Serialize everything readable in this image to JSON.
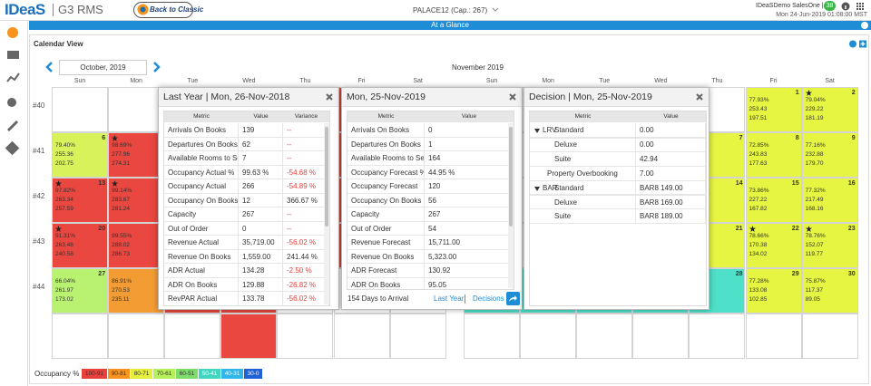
{
  "header": {
    "logo": "IDeaS",
    "product": "G3 RMS",
    "classic_button": "Back to Classic",
    "property": "PALACE12 (Cap.: 267)",
    "user": "IDeaSDemo SalesOne | IM",
    "badge": "38",
    "datetime": "Mon 24-Jun-2019 01:08:00 MST"
  },
  "page_title": "At a Glance",
  "view_title": "Calendar View",
  "calendar": {
    "months": [
      {
        "title": "October, 2019",
        "weekdays": [
          "Sun",
          "Mon",
          "Tue",
          "Wed",
          "Thu",
          "Fri",
          "Sat"
        ],
        "weeks": [
          {
            "label": "#40",
            "days": [
              null,
              null,
              null,
              {
                "color": "#e9473f"
              },
              {
                "color": "#e9473f"
              },
              {
                "color": "#e9473f"
              },
              {
                "color": "#e9473f"
              }
            ]
          },
          {
            "label": "#41",
            "days": [
              {
                "day": "6",
                "lines": [
                  "79.40%",
                  "255.36",
                  "202.75"
                ],
                "color": "#d8f25c"
              },
              {
                "star": true,
                "lines": [
                  "98.69%",
                  "277.96",
                  "274.31"
                ],
                "color": "#e9473f"
              },
              {
                "color": "#e9473f"
              },
              {
                "color": "#e9473f"
              },
              {
                "color": "#e9473f"
              },
              {
                "color": "#e9473f"
              },
              {
                "color": "#e9473f"
              }
            ]
          },
          {
            "label": "#42",
            "days": [
              {
                "day": "13",
                "star": true,
                "lines": [
                  "97.82%",
                  "263.34",
                  "257.59"
                ],
                "color": "#e9473f"
              },
              {
                "star": true,
                "lines": [
                  "99.14%",
                  "283.67",
                  "281.24"
                ],
                "color": "#e9473f"
              },
              {
                "color": "#e9473f"
              },
              {
                "color": "#e9473f"
              },
              {
                "color": "#e9473f"
              },
              {
                "color": "#e9473f"
              },
              {
                "color": "#e9473f"
              }
            ]
          },
          {
            "label": "#43",
            "days": [
              {
                "day": "20",
                "star": true,
                "lines": [
                  "91.31%",
                  "263.48",
                  "240.58"
                ],
                "color": "#e9473f"
              },
              {
                "lines": [
                  "99.55%",
                  "288.02",
                  "286.73"
                ],
                "color": "#e9473f"
              },
              {
                "color": "#e9473f"
              },
              {
                "color": "#e9473f"
              },
              {
                "color": "#e9473f"
              },
              {
                "color": "#e9473f"
              },
              {
                "color": "#e9473f"
              }
            ]
          },
          {
            "label": "#44",
            "days": [
              {
                "day": "27",
                "lines": [
                  "66.04%",
                  "261.97",
                  "173.02"
                ],
                "color": "#b9f170"
              },
              {
                "lines": [
                  "86.91%",
                  "270.53",
                  "235.11"
                ],
                "color": "#f39c34"
              },
              {
                "color": "#e9473f"
              },
              {
                "color": "#e9473f"
              },
              null,
              null,
              null
            ]
          },
          {
            "days": [
              null,
              null,
              null,
              {
                "color": "#e9473f"
              },
              null,
              null,
              null
            ]
          }
        ]
      },
      {
        "title": "November 2019",
        "weekdays": [
          "Sun",
          "Mon",
          "Tue",
          "Wed",
          "Thu",
          "Fri",
          "Sat"
        ],
        "weeks": [
          {
            "days": [
              null,
              null,
              null,
              null,
              null,
              {
                "day": "1",
                "lines": [
                  "77.93%",
                  "253.43",
                  "197.51"
                ],
                "color": "#e5f542"
              },
              {
                "day": "2",
                "star": true,
                "lines": [
                  "79.04%",
                  "229.22",
                  "181.19"
                ],
                "color": "#e5f542"
              }
            ]
          },
          {
            "days": [
              null,
              null,
              null,
              null,
              {
                "day": "7",
                "color": "#e5f542"
              },
              {
                "day": "8",
                "lines": [
                  "72.85%",
                  "243.83",
                  "177.63"
                ],
                "color": "#e5f542"
              },
              {
                "day": "9",
                "lines": [
                  "77.16%",
                  "232.88",
                  "179.70"
                ],
                "color": "#e5f542"
              }
            ]
          },
          {
            "days": [
              null,
              null,
              null,
              null,
              {
                "day": "14",
                "color": "#e5f542"
              },
              {
                "day": "15",
                "lines": [
                  "73.86%",
                  "227.22",
                  "167.82"
                ],
                "color": "#e5f542"
              },
              {
                "day": "16",
                "lines": [
                  "77.32%",
                  "217.49",
                  "168.16"
                ],
                "color": "#e5f542"
              }
            ]
          },
          {
            "days": [
              null,
              null,
              null,
              null,
              {
                "day": "21",
                "star": true,
                "color": "#e5f542"
              },
              {
                "day": "22",
                "star": true,
                "lines": [
                  "78.66%",
                  "170.38",
                  "134.02"
                ],
                "color": "#e5f542"
              },
              {
                "day": "23",
                "star": true,
                "lines": [
                  "78.76%",
                  "152.07",
                  "119.77"
                ],
                "color": "#e5f542"
              }
            ]
          },
          {
            "days": [
              {
                "color": "#4ee0c9"
              },
              {
                "color": "#4ee0c9"
              },
              {
                "color": "#4ee0c9"
              },
              {
                "color": "#4ee0c9"
              },
              {
                "day": "28",
                "color": "#4ee0c9"
              },
              {
                "day": "29",
                "lines": [
                  "77.28%",
                  "133.08",
                  "102.85"
                ],
                "color": "#e5f542"
              },
              {
                "day": "30",
                "lines": [
                  "75.87%",
                  "117.37",
                  "89.05"
                ],
                "color": "#e5f542"
              }
            ]
          },
          {
            "days": [
              null,
              null,
              null,
              null,
              null,
              null,
              null
            ]
          }
        ]
      }
    ]
  },
  "popups": [
    {
      "title": "Last Year | Mon, 26-Nov-2018",
      "columns": [
        "Metric",
        "Value",
        "Variance"
      ],
      "rows": [
        [
          "Arrivals On Books",
          "139",
          "--"
        ],
        [
          "Departures On Books",
          "62",
          "--"
        ],
        [
          "Available Rooms to Sell",
          "7",
          "--"
        ],
        [
          "Occupancy Actual %",
          "99.63 %",
          "-54.68 %"
        ],
        [
          "Occupancy Actual",
          "266",
          "-54.89 %"
        ],
        [
          "Occupancy On Books",
          "12",
          "366.67 %"
        ],
        [
          "Capacity",
          "267",
          "--"
        ],
        [
          "Out of Order",
          "0",
          "--"
        ],
        [
          "Revenue Actual",
          "35,719.00",
          "-56.02 %"
        ],
        [
          "Revenue On Books",
          "1,559.00",
          "241.44 %"
        ],
        [
          "ADR Actual",
          "134.28",
          "-2.50 %"
        ],
        [
          "ADR On Books",
          "129.88",
          "-26.82 %"
        ],
        [
          "RevPAR Actual",
          "133.78",
          "-56.02 %"
        ]
      ]
    },
    {
      "title": "Mon, 25-Nov-2019",
      "columns": [
        "Metric",
        "Value"
      ],
      "rows": [
        [
          "Arrivals On Books",
          "0"
        ],
        [
          "Departures On Books",
          "1"
        ],
        [
          "Available Rooms to Sell",
          "164"
        ],
        [
          "Occupancy Forecast %",
          "44.95 %"
        ],
        [
          "Occupancy Forecast",
          "120"
        ],
        [
          "Occupancy On Books",
          "56"
        ],
        [
          "Capacity",
          "267"
        ],
        [
          "Out of Order",
          "54"
        ],
        [
          "Revenue Forecast",
          "15,711.00"
        ],
        [
          "Revenue On Books",
          "5,323.00"
        ],
        [
          "ADR Forecast",
          "130.92"
        ],
        [
          "ADR On Books",
          "95.05"
        ]
      ],
      "footer": {
        "days": "154 Days to Arrival",
        "links": [
          "Last Year",
          "Decisions"
        ]
      }
    },
    {
      "title": "Decision | Mon, 25-Nov-2019",
      "columns": [
        "Metric",
        "Value"
      ],
      "rows": [
        {
          "group": "LRV",
          "rows": [
            [
              "Standard",
              "0.00"
            ],
            [
              "Deluxe",
              "0.00"
            ],
            [
              "Suite",
              "42.94"
            ]
          ]
        },
        [
          "Property Overbooking",
          "7.00"
        ],
        {
          "group": "BAR",
          "rows": [
            [
              "Standard",
              "BAR8 149.00"
            ],
            [
              "Deluxe",
              "BAR8 169.00"
            ],
            [
              "Suite",
              "BAR8 189.00"
            ]
          ]
        }
      ]
    }
  ],
  "legend": {
    "label": "Occupancy % :",
    "items": [
      {
        "label": "100-91",
        "color": "#e8413c"
      },
      {
        "label": "90-81",
        "color": "#f7941d"
      },
      {
        "label": "80-71",
        "color": "#e5ee3a"
      },
      {
        "label": "70-61",
        "color": "#b5ef5a"
      },
      {
        "label": "60-51",
        "color": "#7ddc6a"
      },
      {
        "label": "50-41",
        "color": "#42d6c1"
      },
      {
        "label": "40-31",
        "color": "#2eb7e8"
      },
      {
        "label": "30-0",
        "color": "#1f62d6"
      }
    ]
  }
}
